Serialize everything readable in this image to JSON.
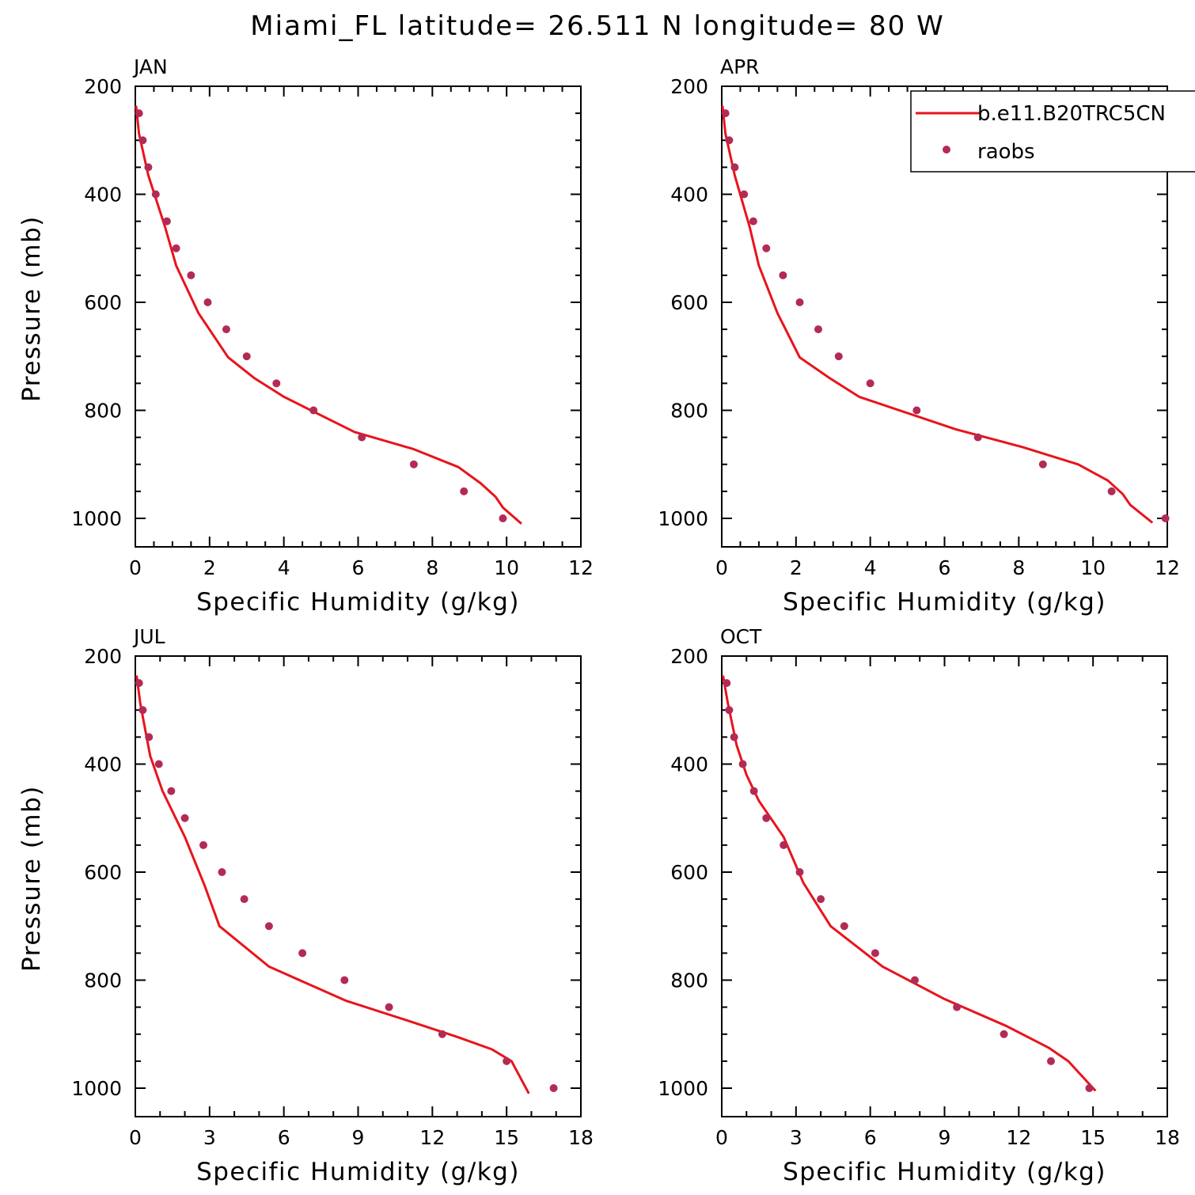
{
  "title": "Miami_FL  latitude= 26.511 N longitude= 80 W",
  "legend": {
    "line_label": "b.e11.B20TRC5CN",
    "dot_label": "raobs",
    "line_color": "#e8141c",
    "dot_color": "#b32b55"
  },
  "chart_data": [
    {
      "type": "line",
      "panel": "JAN",
      "xlabel": "Specific Humidity (g/kg)",
      "ylabel": "Pressure (mb)",
      "xlim": [
        0,
        12
      ],
      "ylim": [
        200,
        1025
      ],
      "y_inverted": true,
      "xticks": [
        0,
        2,
        4,
        6,
        8,
        10,
        12
      ],
      "yticks": [
        200,
        400,
        600,
        800,
        1000
      ],
      "model": {
        "name": "b.e11.B20TRC5CN",
        "x": [
          0.02,
          0.1,
          0.35,
          0.8,
          1.1,
          1.7,
          2.5,
          3.2,
          4.0,
          5.9,
          7.5,
          8.7,
          9.3,
          9.7,
          9.9,
          10.4
        ],
        "y": [
          236,
          288,
          365,
          460,
          532,
          620,
          702,
          740,
          775,
          840,
          872,
          905,
          935,
          960,
          980,
          1010
        ]
      },
      "raobs": {
        "name": "raobs",
        "x": [
          0.1,
          0.2,
          0.35,
          0.55,
          0.85,
          1.1,
          1.5,
          1.95,
          2.45,
          3.0,
          3.8,
          4.8,
          6.1,
          7.5,
          8.85,
          9.9
        ],
        "y": [
          250,
          300,
          350,
          400,
          450,
          500,
          550,
          600,
          650,
          700,
          750,
          800,
          850,
          900,
          950,
          1000
        ]
      }
    },
    {
      "type": "line",
      "panel": "APR",
      "xlabel": "Specific Humidity (g/kg)",
      "ylabel": "Pressure (mb)",
      "xlim": [
        0,
        12
      ],
      "ylim": [
        200,
        1025
      ],
      "y_inverted": true,
      "xticks": [
        0,
        2,
        4,
        6,
        8,
        10,
        12
      ],
      "yticks": [
        200,
        400,
        600,
        800,
        1000
      ],
      "model": {
        "name": "b.e11.B20TRC5CN",
        "x": [
          0.02,
          0.1,
          0.35,
          0.75,
          1.0,
          1.5,
          2.1,
          2.9,
          3.7,
          6.3,
          8.1,
          9.6,
          10.4,
          10.8,
          11.0,
          11.6
        ],
        "y": [
          236,
          288,
          365,
          460,
          532,
          620,
          702,
          740,
          775,
          835,
          868,
          900,
          930,
          955,
          975,
          1008
        ]
      },
      "raobs": {
        "name": "raobs",
        "x": [
          0.1,
          0.2,
          0.35,
          0.6,
          0.85,
          1.2,
          1.65,
          2.1,
          2.6,
          3.15,
          4.0,
          5.25,
          6.9,
          8.65,
          10.5,
          11.95
        ],
        "y": [
          250,
          300,
          350,
          400,
          450,
          500,
          550,
          600,
          650,
          700,
          750,
          800,
          850,
          900,
          950,
          1000
        ]
      }
    },
    {
      "type": "line",
      "panel": "JUL",
      "xlabel": "Specific Humidity (g/kg)",
      "ylabel": "Pressure (mb)",
      "xlim": [
        0,
        18
      ],
      "ylim": [
        200,
        1025
      ],
      "y_inverted": true,
      "xticks": [
        0,
        3,
        6,
        9,
        12,
        15,
        18
      ],
      "yticks": [
        200,
        400,
        600,
        800,
        1000
      ],
      "model": {
        "name": "b.e11.B20TRC5CN",
        "x": [
          0.05,
          0.2,
          0.6,
          1.1,
          2.0,
          2.8,
          3.4,
          5.4,
          8.5,
          10.8,
          13.0,
          14.4,
          15.2,
          15.9
        ],
        "y": [
          236,
          288,
          385,
          450,
          535,
          625,
          700,
          775,
          838,
          872,
          905,
          928,
          950,
          1010
        ]
      },
      "raobs": {
        "name": "raobs",
        "x": [
          0.15,
          0.3,
          0.55,
          0.95,
          1.45,
          2.0,
          2.75,
          3.5,
          4.4,
          5.4,
          6.75,
          8.45,
          10.25,
          12.4,
          15.0,
          16.9
        ],
        "y": [
          250,
          300,
          350,
          400,
          450,
          500,
          550,
          600,
          650,
          700,
          750,
          800,
          850,
          900,
          950,
          1000
        ]
      }
    },
    {
      "type": "line",
      "panel": "OCT",
      "xlabel": "Specific Humidity (g/kg)",
      "ylabel": "Pressure (mb)",
      "xlim": [
        0,
        18
      ],
      "ylim": [
        200,
        1025
      ],
      "y_inverted": true,
      "xticks": [
        0,
        3,
        6,
        9,
        12,
        15,
        18
      ],
      "yticks": [
        200,
        400,
        600,
        800,
        1000
      ],
      "model": {
        "name": "b.e11.B20TRC5CN",
        "x": [
          0.05,
          0.25,
          0.6,
          1.0,
          1.5,
          2.5,
          3.3,
          4.4,
          6.5,
          9.0,
          11.5,
          13.2,
          14.0,
          14.5,
          15.1
        ],
        "y": [
          236,
          288,
          365,
          420,
          468,
          535,
          620,
          700,
          775,
          835,
          885,
          925,
          950,
          975,
          1005
        ]
      },
      "raobs": {
        "name": "raobs",
        "x": [
          0.2,
          0.3,
          0.5,
          0.85,
          1.3,
          1.8,
          2.5,
          3.15,
          4.0,
          4.95,
          6.2,
          7.8,
          9.5,
          11.4,
          13.3,
          14.85
        ],
        "y": [
          250,
          300,
          350,
          400,
          450,
          500,
          550,
          600,
          650,
          700,
          750,
          800,
          850,
          900,
          950,
          1000
        ]
      }
    }
  ]
}
